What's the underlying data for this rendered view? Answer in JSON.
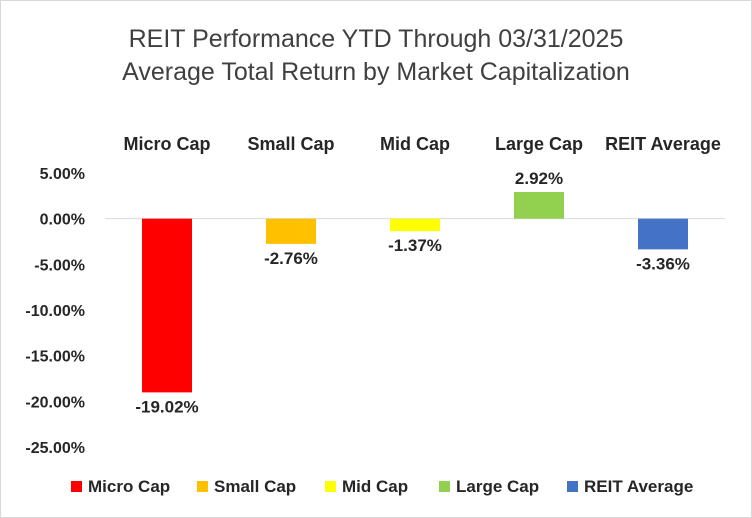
{
  "chart_data": {
    "type": "bar",
    "title": "REIT Performance YTD Through 03/31/2025",
    "subtitle": "Average Total Return by Market Capitalization",
    "categories": [
      "Micro Cap",
      "Small Cap",
      "Mid Cap",
      "Large Cap",
      "REIT Average"
    ],
    "values": [
      -19.02,
      -2.76,
      -1.37,
      2.92,
      -3.36
    ],
    "value_labels": [
      "-19.02%",
      "-2.76%",
      "-1.37%",
      "2.92%",
      "-3.36%"
    ],
    "colors": [
      "#ff0000",
      "#ffc000",
      "#ffff00",
      "#92d050",
      "#4472c4"
    ],
    "ylim": [
      -25,
      5
    ],
    "y_ticks": [
      5,
      0,
      -5,
      -10,
      -15,
      -20,
      -25
    ],
    "y_tick_labels": [
      "5.00%",
      "0.00%",
      "-5.00%",
      "-10.00%",
      "-15.00%",
      "-20.00%",
      "-25.00%"
    ],
    "category_labels_position": "top",
    "legend": {
      "position": "bottom",
      "entries": [
        "Micro Cap",
        "Small Cap",
        "Mid Cap",
        "Large Cap",
        "REIT Average"
      ]
    },
    "xlabel": "",
    "ylabel": "",
    "grid": false
  }
}
